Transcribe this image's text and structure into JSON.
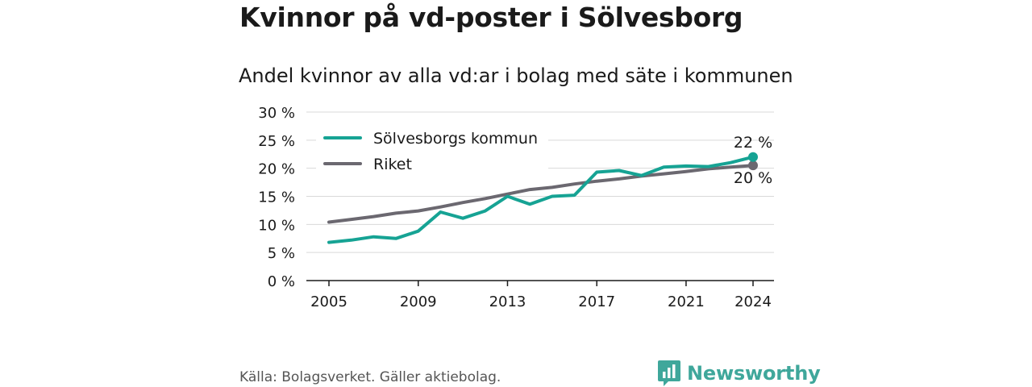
{
  "title": "Kvinnor på vd-poster i Sölvesborg",
  "subtitle": "Andel kvinnor av alla vd:ar i bolag med säte i kommunen",
  "source": "Källa: Bolagsverket. Gäller aktiebolag.",
  "brand": "Newsworthy",
  "colors": {
    "solvesborg": "#16a394",
    "riket": "#6b6870",
    "brand": "#3fa79b",
    "grid": "#d9d9d9"
  },
  "chart_data": {
    "type": "line",
    "title": "Andel kvinnor av alla vd:ar i bolag med säte i kommunen",
    "xlabel": "",
    "ylabel": "",
    "x": [
      2005,
      2006,
      2007,
      2008,
      2009,
      2010,
      2011,
      2012,
      2013,
      2014,
      2015,
      2016,
      2017,
      2018,
      2019,
      2020,
      2021,
      2022,
      2023,
      2024
    ],
    "xlim": [
      2005,
      2024
    ],
    "xticks": [
      2005,
      2009,
      2013,
      2017,
      2021,
      2024
    ],
    "xtick_labels": [
      "2005",
      "2009",
      "2013",
      "2017",
      "2021",
      "2024"
    ],
    "ylim": [
      0,
      30
    ],
    "yticks": [
      0,
      5,
      10,
      15,
      20,
      25,
      30
    ],
    "ytick_labels": [
      "0 %",
      "5 %",
      "10 %",
      "15 %",
      "20 %",
      "25 %",
      "30 %"
    ],
    "grid": true,
    "legend_position": "top-left",
    "series": [
      {
        "name": "Sölvesborgs kommun",
        "color": "#16a394",
        "values": [
          6.8,
          7.2,
          7.8,
          7.5,
          8.8,
          12.2,
          11.1,
          12.4,
          15.0,
          13.6,
          15.0,
          15.2,
          19.3,
          19.6,
          18.7,
          20.2,
          20.4,
          20.3,
          21.0,
          22.0
        ],
        "end_label": "22 %"
      },
      {
        "name": "Riket",
        "color": "#6b6870",
        "values": [
          10.4,
          10.9,
          11.4,
          12.0,
          12.4,
          13.1,
          13.9,
          14.6,
          15.4,
          16.2,
          16.6,
          17.2,
          17.7,
          18.1,
          18.6,
          19.0,
          19.4,
          19.9,
          20.2,
          20.5
        ],
        "end_label": "20 %"
      }
    ]
  }
}
